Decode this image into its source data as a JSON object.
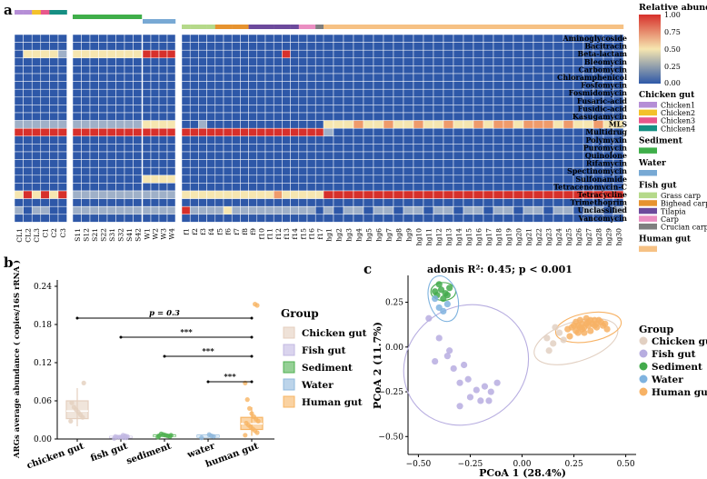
{
  "panel_labels": {
    "a": "a",
    "b": "b",
    "c": "c"
  },
  "colors": {
    "heat_low": "#2e58a8",
    "heat_mid": "#f6e6b0",
    "heat_high": "#d7302b",
    "chicken1": "#b58ed6",
    "chicken2": "#f3c12a",
    "chicken3": "#e8578c",
    "chicken4": "#168f83",
    "sediment": "#3fae4a",
    "water": "#78a9d4",
    "grass_carp": "#b5d98a",
    "bighead_carp": "#e6932f",
    "tilapia": "#6c4a9c",
    "carp": "#ea8ec2",
    "crucian_carp": "#7f7f7f",
    "human_gut": "#f6c184",
    "box_chicken": "#e4cfbe",
    "box_fish": "#c2b8e2",
    "box_sediment": "#4fb050",
    "box_water": "#8fb8dc",
    "box_human": "#f7b463"
  },
  "heatmap": {
    "legend_title": "Relative abundance",
    "legend_ticks": [
      "1.00",
      "0.75",
      "0.50",
      "0.25",
      "0.00"
    ],
    "row_labels": [
      "Aminoglycoside",
      "Bacitracin",
      "Beta-lactam",
      "Bleomycin",
      "Carbomycin",
      "Chloramphenicol",
      "Fosfomycin",
      "Fosmidomycin",
      "Fusaric-acid",
      "Fusidic-acid",
      "Kasugamycin",
      "MLS",
      "Multidrug",
      "Polymyxin",
      "Puromycin",
      "Quinolone",
      "Rifamycin",
      "Spectinomycin",
      "Sulfonamide",
      "Tetracenomycin-C",
      "Tetracycline",
      "Trimethoprim",
      "Unclassified",
      "Vancomycin"
    ],
    "groups": [
      {
        "name": "Chicken gut",
        "samples": [
          "CL1",
          "CL2",
          "CL3",
          "C1",
          "C2",
          "C3"
        ]
      },
      {
        "name": "Sediment",
        "samples": [
          "S11",
          "S12",
          "S21",
          "S22",
          "S31",
          "S32",
          "S41",
          "S42"
        ]
      },
      {
        "name": "Water",
        "samples": [
          "W1",
          "W2",
          "W3",
          "W4"
        ]
      },
      {
        "name": "Fish gut",
        "samples": [
          "f1",
          "f2",
          "f3",
          "f4",
          "f5",
          "f6",
          "f7",
          "f8",
          "f9",
          "f10",
          "f11",
          "f12",
          "f13",
          "f14",
          "f15",
          "f16",
          "f17"
        ]
      },
      {
        "name": "Human gut",
        "samples": [
          "hg1",
          "hg2",
          "hg3",
          "hg4",
          "hg5",
          "hg6",
          "hg7",
          "hg8",
          "hg9",
          "hg10",
          "hg11",
          "hg12",
          "hg13",
          "hg14",
          "hg15",
          "hg16",
          "hg17",
          "hg18",
          "hg19",
          "hg20",
          "hg21",
          "hg22",
          "hg23",
          "hg24",
          "hg25",
          "hg26",
          "hg27",
          "hg28",
          "hg29",
          "hg30"
        ]
      }
    ],
    "top_bars": [
      [
        "chicken1",
        "chicken1",
        "chicken2",
        "chicken3",
        "chicken4",
        "chicken4"
      ],
      [
        "sediment",
        "sediment",
        "sediment",
        "sediment",
        "sediment",
        "sediment",
        "sediment",
        "sediment"
      ],
      [
        "water",
        "water",
        "water",
        "water"
      ],
      [
        "grass_carp",
        "grass_carp",
        "grass_carp",
        "grass_carp",
        "bighead_carp",
        "bighead_carp",
        "bighead_carp",
        "bighead_carp",
        "tilapia",
        "tilapia",
        "tilapia",
        "tilapia",
        "tilapia",
        "tilapia",
        "carp",
        "carp",
        "crucian_carp"
      ],
      [
        "human_gut",
        "human_gut",
        "human_gut",
        "human_gut",
        "human_gut",
        "human_gut",
        "human_gut",
        "human_gut",
        "human_gut",
        "human_gut",
        "human_gut",
        "human_gut",
        "human_gut",
        "human_gut",
        "human_gut",
        "human_gut",
        "human_gut",
        "human_gut",
        "human_gut",
        "human_gut",
        "human_gut",
        "human_gut",
        "human_gut",
        "human_gut",
        "human_gut",
        "human_gut",
        "human_gut",
        "human_gut",
        "human_gut",
        "human_gut"
      ]
    ],
    "matrix": [
      "000000 00000000 0000 00000000000000000 000000000000000000000000000000",
      "000000 00000000 0000 00000000000000000 000000000000000000000000000000",
      "022221 22222222 4444 00000000000040000 000000000000000000000000000000",
      "000000 00000000 0000 00000000000000000 000000000000000000000000000000",
      "000000 00000000 0000 00000000000000000 000000000000000000000000000000",
      "000000 00000000 0000 00000000000000000 000000000000000000000000000000",
      "000000 00000000 0000 00000000000000000 000000000000000000000000000000",
      "000000 00000000 0000 00000000000000000 000000000000000000000000000000",
      "000000 00000000 0000 00000000000000000 000000000000000000000000000000",
      "000000 00000000 0000 00000000000000000 000000000000000000000000000000",
      "000000 00000000 0000 00000000000000000 000000000000000000000000000000",
      "111111 11111111 2222 00100000000000000 222322322322322323323332322322",
      "444444 44444444 4444 44444444444444444 100000000000000000000000000000",
      "000000 00000000 0000 00000000000000000 000000000000000000000000000000",
      "000000 00000000 0000 00000000000000000 000000000000000000000000000000",
      "000000 00000000 0000 00000000000000000 000000000000000000000000000000",
      "000000 00000000 0000 00000000000000000 000000000000000000000000000000",
      "000000 00000000 0000 00000000000000000 000000000000000000000000000000",
      "000000 00000000 2222 00000000000000000 000000000000000000000000000000",
      "000000 00000000 0000 00000000000000000 000000000000000000000000000000",
      "242424 11111111 1111 22222222222322222 444444444444444444444444444444",
      "000000 00000000 0000 00000000000000000 000000000000000000000000000000",
      "101100 11111111 1111 41111211111111110 101101101101101101101101101101",
      "000000 00000000 0000 00000000000000000 000000000000000000000000000000"
    ],
    "level_values": [
      0.05,
      0.25,
      0.5,
      0.75,
      1.0
    ],
    "legend": [
      {
        "title": "Chicken gut",
        "items": [
          {
            "label": "Chicken1",
            "color": "chicken1"
          },
          {
            "label": "Chicken2",
            "color": "chicken2"
          },
          {
            "label": "Chicken3",
            "color": "chicken3"
          },
          {
            "label": "Chicken4",
            "color": "chicken4"
          }
        ]
      },
      {
        "title": "Sediment",
        "items": [
          {
            "label": "",
            "color": "sediment"
          }
        ]
      },
      {
        "title": "Water",
        "items": [
          {
            "label": "",
            "color": "water"
          }
        ]
      },
      {
        "title": "Fish gut",
        "items": [
          {
            "label": "Grass carp",
            "color": "grass_carp"
          },
          {
            "label": "Bighead carp",
            "color": "bighead_carp"
          },
          {
            "label": "Tilapia",
            "color": "tilapia"
          },
          {
            "label": "Carp",
            "color": "carp"
          },
          {
            "label": "Crucian carp",
            "color": "crucian_carp"
          }
        ]
      },
      {
        "title": "Human gut",
        "items": [
          {
            "label": "",
            "color": "human_gut"
          }
        ]
      }
    ]
  },
  "chart_data": [
    {
      "type": "box",
      "ylabel": "ARGs average abundance ( copies/16S rRNA )",
      "ylim": [
        0,
        0.25
      ],
      "yticks": [
        0.0,
        0.06,
        0.12,
        0.18,
        0.24
      ],
      "ytick_labels": [
        "0.00",
        "0.06",
        "0.12",
        "0.18",
        "0.24"
      ],
      "categories": [
        "chicken gut",
        "fish gut",
        "sediment",
        "water",
        "human gut"
      ],
      "boxes": [
        {
          "group": "Chicken gut",
          "min": 0.02,
          "q1": 0.032,
          "median": 0.044,
          "q3": 0.06,
          "max": 0.08,
          "fill": "box_chicken",
          "points": [
            0.028,
            0.034,
            0.038,
            0.042,
            0.046,
            0.05,
            0.057,
            0.088
          ]
        },
        {
          "group": "Fish gut",
          "min": 0.001,
          "q1": 0.002,
          "median": 0.003,
          "q3": 0.004,
          "max": 0.006,
          "fill": "box_fish",
          "points": [
            0.001,
            0.002,
            0.002,
            0.003,
            0.003,
            0.003,
            0.004,
            0.004,
            0.005,
            0.006
          ]
        },
        {
          "group": "Sediment",
          "min": 0.003,
          "q1": 0.004,
          "median": 0.005,
          "q3": 0.0065,
          "max": 0.008,
          "fill": "box_sediment",
          "points": [
            0.003,
            0.004,
            0.005,
            0.006,
            0.007,
            0.008,
            0.005,
            0.006
          ]
        },
        {
          "group": "Water",
          "min": 0.002,
          "q1": 0.003,
          "median": 0.0045,
          "q3": 0.006,
          "max": 0.007,
          "fill": "box_water",
          "points": [
            0.002,
            0.004,
            0.005,
            0.007
          ]
        },
        {
          "group": "Human gut",
          "min": 0.005,
          "q1": 0.015,
          "median": 0.024,
          "q3": 0.034,
          "max": 0.05,
          "fill": "box_human",
          "points": [
            0.006,
            0.01,
            0.013,
            0.016,
            0.019,
            0.022,
            0.025,
            0.028,
            0.031,
            0.035,
            0.04,
            0.048,
            0.062,
            0.088,
            0.21,
            0.212
          ]
        }
      ],
      "annotations": [
        {
          "from": 0,
          "to": 4,
          "y": 0.19,
          "label": "p = 0.3"
        },
        {
          "from": 1,
          "to": 4,
          "y": 0.16,
          "label": "***"
        },
        {
          "from": 2,
          "to": 4,
          "y": 0.13,
          "label": "***"
        },
        {
          "from": 3,
          "to": 4,
          "y": 0.09,
          "label": "***"
        }
      ],
      "legend_title": "Group",
      "legend": [
        {
          "label": "Chicken gut",
          "color": "box_chicken"
        },
        {
          "label": "Fish gut",
          "color": "box_fish"
        },
        {
          "label": "Sediment",
          "color": "box_sediment"
        },
        {
          "label": "Water",
          "color": "box_water"
        },
        {
          "label": "Human gut",
          "color": "box_human"
        }
      ]
    },
    {
      "type": "scatter",
      "title": "adonis R²: 0.45; p < 0.001",
      "xlabel": "PCoA 1 (28.4%)",
      "ylabel": "PCoA 2 (11.7%)",
      "xlim": [
        -0.55,
        0.55
      ],
      "ylim": [
        -0.6,
        0.4
      ],
      "xticks": [
        -0.5,
        -0.25,
        0.0,
        0.25,
        0.5
      ],
      "xtick_labels": [
        "−0.50",
        "−0.25",
        "0.00",
        "0.25",
        "0.50"
      ],
      "yticks": [
        -0.5,
        -0.25,
        0.0,
        0.25
      ],
      "ytick_labels": [
        "−0.50",
        "−0.25",
        "0.00",
        "0.25"
      ],
      "series": [
        {
          "name": "Chicken gut",
          "color": "#e2d0c2",
          "points": [
            [
              0.12,
              0.05
            ],
            [
              0.15,
              0.02
            ],
            [
              0.18,
              0.08
            ],
            [
              0.13,
              -0.02
            ],
            [
              0.2,
              0.04
            ],
            [
              0.16,
              0.11
            ]
          ],
          "ellipse": {
            "cx": 0.26,
            "cy": 0.03,
            "rx": 0.21,
            "ry": 0.11,
            "angle": 18
          }
        },
        {
          "name": "Fish gut",
          "color": "#b7ade0",
          "points": [
            [
              -0.45,
              0.16
            ],
            [
              -0.4,
              0.05
            ],
            [
              -0.35,
              -0.02
            ],
            [
              -0.42,
              -0.08
            ],
            [
              -0.33,
              -0.12
            ],
            [
              -0.3,
              -0.2
            ],
            [
              -0.26,
              -0.18
            ],
            [
              -0.22,
              -0.24
            ],
            [
              -0.18,
              -0.22
            ],
            [
              -0.25,
              -0.28
            ],
            [
              -0.2,
              -0.3
            ],
            [
              -0.15,
              -0.25
            ],
            [
              -0.12,
              -0.2
            ],
            [
              -0.28,
              -0.1
            ],
            [
              -0.36,
              -0.05
            ],
            [
              -0.16,
              -0.3
            ],
            [
              -0.3,
              -0.33
            ]
          ],
          "ellipse": {
            "cx": -0.27,
            "cy": -0.1,
            "rx": 0.28,
            "ry": 0.36,
            "angle": -55
          }
        },
        {
          "name": "Sediment",
          "color": "#43aa4c",
          "points": [
            [
              -0.41,
              0.29
            ],
            [
              -0.39,
              0.32
            ],
            [
              -0.37,
              0.3
            ],
            [
              -0.4,
              0.35
            ],
            [
              -0.35,
              0.33
            ],
            [
              -0.38,
              0.27
            ],
            [
              -0.42,
              0.31
            ],
            [
              -0.36,
              0.29
            ]
          ],
          "ellipse": {
            "cx": -0.38,
            "cy": 0.31,
            "rx": 0.06,
            "ry": 0.05,
            "angle": 0
          }
        },
        {
          "name": "Water",
          "color": "#7fb3df",
          "points": [
            [
              -0.4,
              0.22
            ],
            [
              -0.38,
              0.2
            ],
            [
              -0.42,
              0.27
            ],
            [
              -0.36,
              0.24
            ]
          ],
          "ellipse": {
            "cx": -0.38,
            "cy": 0.27,
            "rx": 0.07,
            "ry": 0.13,
            "angle": 15
          }
        },
        {
          "name": "Human gut",
          "color": "#f7b265",
          "points": [
            [
              0.22,
              0.1
            ],
            [
              0.25,
              0.12
            ],
            [
              0.28,
              0.15
            ],
            [
              0.3,
              0.11
            ],
            [
              0.32,
              0.14
            ],
            [
              0.35,
              0.12
            ],
            [
              0.37,
              0.15
            ],
            [
              0.33,
              0.09
            ],
            [
              0.27,
              0.08
            ],
            [
              0.4,
              0.13
            ],
            [
              0.26,
              0.14
            ],
            [
              0.29,
              0.13
            ],
            [
              0.31,
              0.16
            ],
            [
              0.34,
              0.13
            ],
            [
              0.36,
              0.11
            ],
            [
              0.38,
              0.14
            ],
            [
              0.24,
              0.11
            ],
            [
              0.3,
              0.08
            ],
            [
              0.41,
              0.1
            ],
            [
              0.33,
              0.15
            ],
            [
              0.23,
              0.06
            ],
            [
              0.28,
              0.11
            ],
            [
              0.35,
              0.15
            ],
            [
              0.39,
              0.12
            ],
            [
              0.27,
              0.12
            ],
            [
              0.32,
              0.12
            ],
            [
              0.29,
              0.1
            ],
            [
              0.36,
              0.13
            ],
            [
              0.26,
              0.09
            ],
            [
              0.31,
              0.13
            ]
          ],
          "ellipse": {
            "cx": 0.32,
            "cy": 0.11,
            "rx": 0.16,
            "ry": 0.08,
            "angle": 10
          }
        }
      ],
      "legend_title": "Group",
      "legend": [
        {
          "label": "Chicken gut",
          "color": "#e2d0c2"
        },
        {
          "label": "Fish gut",
          "color": "#b7ade0"
        },
        {
          "label": "Sediment",
          "color": "#43aa4c"
        },
        {
          "label": "Water",
          "color": "#7fb3df"
        },
        {
          "label": "Human gut",
          "color": "#f7b265"
        }
      ]
    }
  ]
}
